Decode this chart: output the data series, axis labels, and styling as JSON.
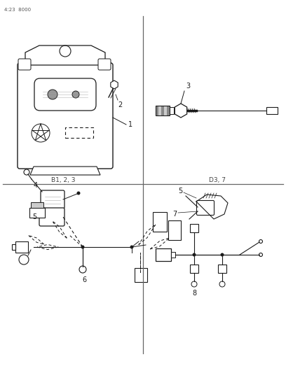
{
  "page_code": "4:23  8000",
  "background_color": "#ffffff",
  "line_color": "#1a1a1a",
  "divider_color": "#666666",
  "fig_width": 4.08,
  "fig_height": 5.33,
  "dpi": 100,
  "labels": {
    "page_code": "4:23  8000",
    "label1": "1",
    "label2": "2",
    "label3": "3",
    "label4": "4",
    "label5": "5",
    "label6": "6",
    "label7": "7",
    "label8": "8",
    "bottom_left": "B1, 2, 3",
    "bottom_right": "D3, 7"
  }
}
